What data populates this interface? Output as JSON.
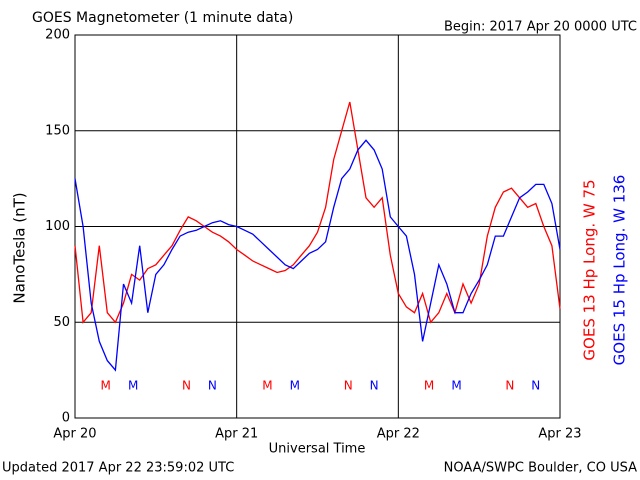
{
  "chart_data": {
    "type": "line",
    "title": "GOES Magnetometer (1 minute data)",
    "subtitle": "Begin:  2017 Apr 20 0000 UTC",
    "y_label": "NanoTesla (nT)",
    "x_label": "Universal Time",
    "footer_left": "Updated 2017 Apr 22 23:59:02 UTC",
    "footer_right": "NOAA/SWPC Boulder, CO USA",
    "x": [
      0,
      0.05,
      0.1,
      0.15,
      0.2,
      0.25,
      0.3,
      0.35,
      0.4,
      0.45,
      0.5,
      0.55,
      0.6,
      0.65,
      0.7,
      0.75,
      0.8,
      0.85,
      0.9,
      0.95,
      1,
      1.05,
      1.1,
      1.15,
      1.2,
      1.25,
      1.3,
      1.35,
      1.4,
      1.45,
      1.5,
      1.55,
      1.6,
      1.65,
      1.7,
      1.75,
      1.8,
      1.85,
      1.9,
      1.95,
      2,
      2.05,
      2.1,
      2.15,
      2.2,
      2.25,
      2.3,
      2.35,
      2.4,
      2.45,
      2.5,
      2.55,
      2.6,
      2.65,
      2.7,
      2.75,
      2.8,
      2.85,
      2.9,
      2.95,
      3
    ],
    "series": [
      {
        "name": "GOES 13 Hp  Long. W 75",
        "color": "#ff0000",
        "values": [
          90,
          50,
          55,
          90,
          55,
          50,
          60,
          75,
          72,
          78,
          80,
          85,
          90,
          98,
          105,
          103,
          100,
          97,
          95,
          92,
          88,
          85,
          82,
          80,
          78,
          76,
          77,
          80,
          85,
          90,
          97,
          110,
          135,
          150,
          165,
          140,
          115,
          110,
          115,
          85,
          65,
          58,
          55,
          65,
          50,
          55,
          65,
          55,
          70,
          60,
          70,
          95,
          110,
          118,
          120,
          115,
          110,
          112,
          100,
          90,
          57
        ]
      },
      {
        "name": "GOES 15 Hp  Long. W 136",
        "color": "#0000ff",
        "values": [
          125,
          100,
          60,
          40,
          30,
          25,
          70,
          60,
          90,
          55,
          75,
          80,
          88,
          95,
          97,
          98,
          100,
          102,
          103,
          101,
          100,
          98,
          96,
          92,
          88,
          84,
          80,
          78,
          82,
          86,
          88,
          92,
          110,
          125,
          130,
          140,
          145,
          140,
          130,
          105,
          100,
          95,
          75,
          40,
          60,
          80,
          70,
          55,
          55,
          65,
          72,
          80,
          95,
          95,
          105,
          115,
          118,
          122,
          122,
          112,
          88
        ]
      }
    ],
    "annotations": [
      {
        "text": "M",
        "x": 0.19,
        "color": "#ff0000"
      },
      {
        "text": "M",
        "x": 0.36,
        "color": "#0000ff"
      },
      {
        "text": "N",
        "x": 0.69,
        "color": "#ff0000"
      },
      {
        "text": "N",
        "x": 0.85,
        "color": "#0000ff"
      },
      {
        "text": "M",
        "x": 1.19,
        "color": "#ff0000"
      },
      {
        "text": "M",
        "x": 1.36,
        "color": "#0000ff"
      },
      {
        "text": "N",
        "x": 1.69,
        "color": "#ff0000"
      },
      {
        "text": "N",
        "x": 1.85,
        "color": "#0000ff"
      },
      {
        "text": "M",
        "x": 2.19,
        "color": "#ff0000"
      },
      {
        "text": "M",
        "x": 2.36,
        "color": "#0000ff"
      },
      {
        "text": "N",
        "x": 2.69,
        "color": "#ff0000"
      },
      {
        "text": "N",
        "x": 2.85,
        "color": "#0000ff"
      }
    ],
    "xlim": [
      0,
      3
    ],
    "xticks": [
      {
        "value": 0,
        "label": "Apr 20"
      },
      {
        "value": 1,
        "label": "Apr 21"
      },
      {
        "value": 2,
        "label": "Apr 22"
      },
      {
        "value": 3,
        "label": "Apr 23"
      }
    ],
    "ylim": [
      0,
      200
    ],
    "yticks": [
      0,
      50,
      100,
      150,
      200
    ],
    "grid": true
  }
}
